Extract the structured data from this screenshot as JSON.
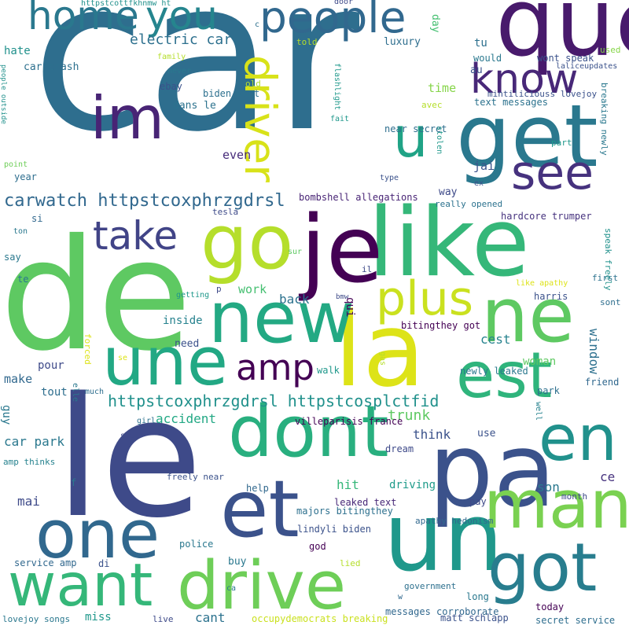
{
  "words": [
    {
      "text": "car",
      "color": "#2e6e8e"
    },
    {
      "text": "de",
      "color": "#5ec962"
    },
    {
      "text": "le",
      "color": "#3e4a89"
    },
    {
      "text": "que",
      "color": "#481a6c"
    },
    {
      "text": "la",
      "color": "#dde318"
    },
    {
      "text": "like",
      "color": "#35b779"
    },
    {
      "text": "go",
      "color": "#b5de2b"
    },
    {
      "text": "je",
      "color": "#440154"
    },
    {
      "text": "get",
      "color": "#2a788e"
    },
    {
      "text": "im",
      "color": "#482475"
    },
    {
      "text": "new",
      "color": "#23a983"
    },
    {
      "text": "une",
      "color": "#22a884"
    },
    {
      "text": "ne",
      "color": "#5ec962"
    },
    {
      "text": "est",
      "color": "#2fb47c"
    },
    {
      "text": "pa",
      "color": "#3b528b"
    },
    {
      "text": "un",
      "color": "#1f988b"
    },
    {
      "text": "dont",
      "color": "#29af7f"
    },
    {
      "text": "one",
      "color": "#31688e"
    },
    {
      "text": "et",
      "color": "#3b528b"
    },
    {
      "text": "want",
      "color": "#35b779"
    },
    {
      "text": "drive",
      "color": "#6ece58"
    },
    {
      "text": "man",
      "color": "#7ad151"
    },
    {
      "text": "got",
      "color": "#287d8e"
    },
    {
      "text": "en",
      "color": "#21918c"
    },
    {
      "text": "people",
      "color": "#31688e"
    },
    {
      "text": "home",
      "color": "#2a788e"
    },
    {
      "text": "you",
      "color": "#25858e"
    },
    {
      "text": "know",
      "color": "#482878"
    },
    {
      "text": "see",
      "color": "#46327e"
    },
    {
      "text": "u",
      "color": "#20a386"
    },
    {
      "text": "take",
      "color": "#414487"
    },
    {
      "text": "plus",
      "color": "#cae11f"
    },
    {
      "text": "amp",
      "color": "#440154"
    },
    {
      "text": "driver",
      "color": "#d8e219"
    },
    {
      "text": "carwatch httpstcoxphrzgdrsl",
      "color": "#31688e"
    },
    {
      "text": "electric car",
      "color": "#2d708e"
    },
    {
      "text": "httpstcoxphrzgdrsl httpstcosplctfid",
      "color": "#21918c"
    },
    {
      "text": "accident",
      "color": "#22a884"
    },
    {
      "text": "trunk",
      "color": "#5ec962"
    },
    {
      "text": "think",
      "color": "#3b528b"
    },
    {
      "text": "car park",
      "color": "#2a788e"
    },
    {
      "text": "mai",
      "color": "#3e4a89"
    },
    {
      "text": "hit",
      "color": "#35b779"
    },
    {
      "text": "driving",
      "color": "#1e9b8a"
    },
    {
      "text": "son",
      "color": "#2a788e"
    },
    {
      "text": "ce",
      "color": "#46327e"
    },
    {
      "text": "cest",
      "color": "#26828e"
    },
    {
      "text": "back",
      "color": "#2c728e"
    },
    {
      "text": "work",
      "color": "#44bf70"
    },
    {
      "text": "make",
      "color": "#31688e"
    },
    {
      "text": "pour",
      "color": "#3e4a89"
    },
    {
      "text": "tout",
      "color": "#2e6e8e"
    },
    {
      "text": "time",
      "color": "#86d549"
    },
    {
      "text": "hate",
      "color": "#21918c"
    },
    {
      "text": "jai",
      "color": "#3b528b"
    },
    {
      "text": "car crash",
      "color": "#2d708e"
    },
    {
      "text": "woman",
      "color": "#5ec962"
    },
    {
      "text": "window",
      "color": "#2d708e"
    },
    {
      "text": "qui",
      "color": "#440154"
    },
    {
      "text": "use",
      "color": "#3b528b"
    },
    {
      "text": "guy",
      "color": "#2a788e"
    },
    {
      "text": "year",
      "color": "#2e6e8e"
    },
    {
      "text": "even",
      "color": "#472c7a"
    },
    {
      "text": "inside",
      "color": "#26828e"
    },
    {
      "text": "need",
      "color": "#3b528b"
    },
    {
      "text": "way",
      "color": "#3e4a89"
    },
    {
      "text": "au",
      "color": "#3b528b"
    },
    {
      "text": "tu",
      "color": "#2d708e"
    },
    {
      "text": "day",
      "color": "#44bf70"
    },
    {
      "text": "luxury",
      "color": "#2e6e8e"
    },
    {
      "text": "help",
      "color": "#31688e"
    },
    {
      "text": "dream",
      "color": "#3e4a89"
    },
    {
      "text": "buy",
      "color": "#2a788e"
    },
    {
      "text": "cant",
      "color": "#2c728e"
    },
    {
      "text": "miss",
      "color": "#1f988b"
    },
    {
      "text": "today",
      "color": "#440154"
    },
    {
      "text": "long",
      "color": "#2a788e"
    },
    {
      "text": "pay",
      "color": "#3e4a89"
    },
    {
      "text": "harris",
      "color": "#3b528b"
    },
    {
      "text": "friend",
      "color": "#31688e"
    },
    {
      "text": "park",
      "color": "#2d708e"
    },
    {
      "text": "walk",
      "color": "#1f988b"
    },
    {
      "text": "si",
      "color": "#31688e"
    },
    {
      "text": "say",
      "color": "#2a788e"
    },
    {
      "text": "te",
      "color": "#2a788e"
    },
    {
      "text": "f",
      "color": "#2a788e"
    },
    {
      "text": "di",
      "color": "#3b528b"
    },
    {
      "text": "live",
      "color": "#3e4a89"
    },
    {
      "text": "god",
      "color": "#440154"
    },
    {
      "text": "police",
      "color": "#2a788e"
    },
    {
      "text": "dans le",
      "color": "#2c728e"
    },
    {
      "text": "ebay",
      "color": "#3b528b"
    },
    {
      "text": "biden wont",
      "color": "#2d708e"
    },
    {
      "text": "bombshell allegations",
      "color": "#482475"
    },
    {
      "text": "tesla",
      "color": "#3e4a89"
    },
    {
      "text": "villeparisis france",
      "color": "#440154"
    },
    {
      "text": "leaked text",
      "color": "#482878"
    },
    {
      "text": "majors bitingthey",
      "color": "#2d708e"
    },
    {
      "text": "lindyli biden",
      "color": "#3b528b"
    },
    {
      "text": "bitingthey got",
      "color": "#440154"
    },
    {
      "text": "newly leaked",
      "color": "#2a788e"
    },
    {
      "text": "near secret",
      "color": "#2e6e8e"
    },
    {
      "text": "text messages",
      "color": "#2c728e"
    },
    {
      "text": "wont speak",
      "color": "#3b528b"
    },
    {
      "text": "would",
      "color": "#2a788e"
    },
    {
      "text": "hardcore trumper",
      "color": "#46327e"
    },
    {
      "text": "really opened",
      "color": "#2c728e"
    },
    {
      "text": "mintiliciouss lovejoy",
      "color": "#3b528b"
    },
    {
      "text": "apathy hedonism",
      "color": "#31688e"
    },
    {
      "text": "matt schlapp",
      "color": "#3b528b"
    },
    {
      "text": "messages corroborate",
      "color": "#31688e"
    },
    {
      "text": "secret service",
      "color": "#2e6e8e"
    },
    {
      "text": "occupydemocrats breaking",
      "color": "#cae11f"
    },
    {
      "text": "government",
      "color": "#2d708e"
    },
    {
      "text": "service amp",
      "color": "#31688e"
    },
    {
      "text": "lovejoy songs",
      "color": "#2a788e"
    },
    {
      "text": "amp thinks",
      "color": "#26828e"
    },
    {
      "text": "freely near",
      "color": "#3b528b"
    },
    {
      "text": "laliceupdates",
      "color": "#3b528b"
    },
    {
      "text": "first",
      "color": "#2c728e"
    },
    {
      "text": "sont",
      "color": "#2e6e8e"
    },
    {
      "text": "month",
      "color": "#3e4a89"
    },
    {
      "text": "bmw",
      "color": "#3e4a89"
    },
    {
      "text": "people outside",
      "color": "#21918c"
    },
    {
      "text": "httpstcottfkhnmw ht",
      "color": "#21918c"
    },
    {
      "text": "told",
      "color": "#b5de2b"
    },
    {
      "text": "family",
      "color": "#b5de2b"
    },
    {
      "text": "never",
      "color": "#2a788e"
    },
    {
      "text": "old",
      "color": "#b5de2b"
    },
    {
      "text": "fait",
      "color": "#1f988b"
    },
    {
      "text": "avec",
      "color": "#b5de2b"
    },
    {
      "text": "part",
      "color": "#1f988b"
    },
    {
      "text": "used",
      "color": "#86d549"
    },
    {
      "text": "point",
      "color": "#6ece58"
    },
    {
      "text": "type",
      "color": "#3b528b"
    },
    {
      "text": "ex",
      "color": "#3b528b"
    },
    {
      "text": "ton",
      "color": "#2a788e"
    },
    {
      "text": "sur",
      "color": "#5ec962"
    },
    {
      "text": "getting",
      "color": "#1f988b"
    },
    {
      "text": "p",
      "color": "#3e4a89"
    },
    {
      "text": "il",
      "color": "#3e4a89"
    },
    {
      "text": "like apathy",
      "color": "#dde318"
    },
    {
      "text": "se",
      "color": "#dde318"
    },
    {
      "text": "much",
      "color": "#2e6e8e"
    },
    {
      "text": "girl",
      "color": "#2c728e"
    },
    {
      "text": "shot",
      "color": "#3e4a89"
    },
    {
      "text": "ca",
      "color": "#2a788e"
    },
    {
      "text": "lied",
      "color": "#b5de2b"
    },
    {
      "text": "w",
      "color": "#31688e"
    },
    {
      "text": "door",
      "color": "#3e4a89"
    },
    {
      "text": "c",
      "color": "#2d708e"
    },
    {
      "text": "flashlight",
      "color": "#1f988b"
    },
    {
      "text": "stolen",
      "color": "#1f988b"
    },
    {
      "text": "breaking newly",
      "color": "#2a788e"
    },
    {
      "text": "speak freely",
      "color": "#21918c"
    },
    {
      "text": "forced",
      "color": "#dde318"
    },
    {
      "text": "elle",
      "color": "#2a788e"
    },
    {
      "text": "gas",
      "color": "#b5de2b"
    },
    {
      "text": "well",
      "color": "#26828e"
    }
  ]
}
